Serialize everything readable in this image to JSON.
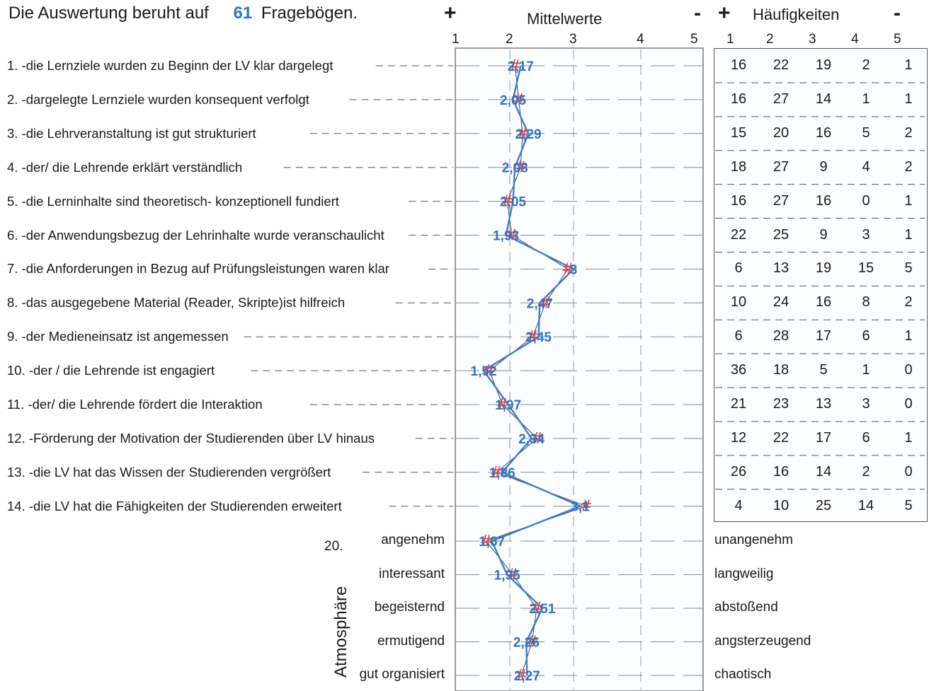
{
  "header": {
    "prefix": "Die Auswertung beruht auf",
    "count": "61",
    "suffix": "Fragebögen.",
    "means_title": "Mittelwerte",
    "freq_title": "Häufigkeiten",
    "plus": "+",
    "minus": "-"
  },
  "scale_ticks": [
    "1",
    "2",
    "3",
    "4",
    "5"
  ],
  "atmosphere": {
    "number": "20.",
    "vertical_label": "Atmosphäre"
  },
  "chart_data": {
    "type": "line",
    "xlim": [
      1,
      5
    ],
    "questions": [
      {
        "label": "1. -die Lernziele wurden zu Beginn der LV klar dargelegt",
        "mean": 2.17,
        "mean_label": "2,17",
        "freq": [
          16,
          22,
          19,
          2,
          1
        ]
      },
      {
        "label": "2. -dargelegte Lernziele wurden  konsequent verfolgt",
        "mean": 2.05,
        "mean_label": "2,05",
        "freq": [
          16,
          27,
          14,
          1,
          1
        ]
      },
      {
        "label": "3. -die Lehrveranstaltung ist gut strukturiert",
        "mean": 2.29,
        "mean_label": "2,29",
        "freq": [
          15,
          20,
          16,
          5,
          2
        ]
      },
      {
        "label": "4. -der/ die Lehrende erklärt verständlich",
        "mean": 2.08,
        "mean_label": "2,08",
        "freq": [
          18,
          27,
          9,
          4,
          2
        ]
      },
      {
        "label": "5. -die  Lerninhalte sind theoretisch- konzeptionell fundiert",
        "mean": 2.05,
        "mean_label": "2,05",
        "freq": [
          16,
          27,
          16,
          0,
          1
        ]
      },
      {
        "label": "6. -der Anwendungsbezug der Lehrinhalte wurde veranschaulicht",
        "mean": 1.93,
        "mean_label": "1,93",
        "freq": [
          22,
          25,
          9,
          3,
          1
        ]
      },
      {
        "label": "7. -die Anforderungen in Bezug auf Prüfungsleistungen waren klar",
        "mean": 3,
        "mean_label": "3",
        "freq": [
          6,
          13,
          19,
          15,
          5
        ]
      },
      {
        "label": "8. -das ausgegebene Material (Reader, Skripte)ist hilfreich",
        "mean": 2.47,
        "mean_label": "2,47",
        "freq": [
          10,
          24,
          16,
          8,
          2
        ]
      },
      {
        "label": "9. -der Medieneinsatz ist angemessen",
        "mean": 2.45,
        "mean_label": "2,45",
        "freq": [
          6,
          28,
          17,
          6,
          1
        ]
      },
      {
        "label": "10. -der / die Lehrende ist engagiert",
        "mean": 1.52,
        "mean_label": "1,52",
        "freq": [
          36,
          18,
          5,
          1,
          0
        ]
      },
      {
        "label": "11. -der/ die Lehrende fördert die Interaktion",
        "mean": 1.97,
        "mean_label": "1,97",
        "freq": [
          21,
          23,
          13,
          3,
          0
        ]
      },
      {
        "label": "12. -Förderung der Motivation der Studierenden  über LV hinaus",
        "mean": 2.34,
        "mean_label": "2,34",
        "freq": [
          12,
          22,
          17,
          6,
          1
        ]
      },
      {
        "label": "13. -die LV hat das Wissen der Studierenden vergrößert",
        "mean": 1.86,
        "mean_label": "1,86",
        "freq": [
          26,
          16,
          14,
          2,
          0
        ]
      },
      {
        "label": "14. -die LV hat die Fähigkeiten der Studierenden erweitert",
        "mean": 3.1,
        "mean_label": "3,1",
        "freq": [
          4,
          10,
          25,
          14,
          5
        ]
      }
    ],
    "atmosphere_items": [
      {
        "left": "angenehm",
        "right": "unangenehm",
        "mean": 1.67,
        "mean_label": "1,67"
      },
      {
        "left": "interessant",
        "right": "langweilig",
        "mean": 1.95,
        "mean_label": "1,95"
      },
      {
        "left": "begeisternd",
        "right": "abstoßend",
        "mean": 2.51,
        "mean_label": "2,51"
      },
      {
        "left": "ermutigend",
        "right": "angsterzeugend",
        "mean": 2.26,
        "mean_label": "2,26"
      },
      {
        "left": "gut organisiert",
        "right": "chaotisch",
        "mean": 2.27,
        "mean_label": "2,27"
      }
    ],
    "colors": {
      "series": "#3a7fd0",
      "reference": "#333333",
      "marker": "#e0444a",
      "label": "#2f73c4"
    }
  }
}
